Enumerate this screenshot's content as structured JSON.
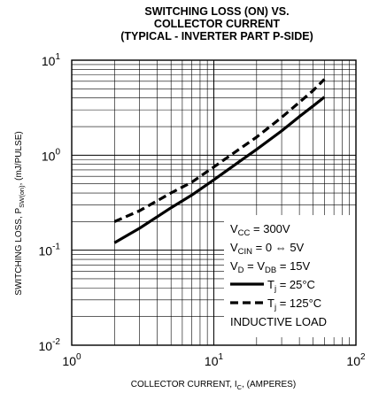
{
  "chart_data": {
    "type": "line",
    "title": [
      "SWITCHING LOSS (ON) VS.",
      "COLLECTOR CURRENT",
      "(TYPICAL - INVERTER PART P-SIDE)"
    ],
    "xlabel": "COLLECTOR CURRENT, I C, (AMPERES)",
    "xlabel_parts": [
      "COLLECTOR CURRENT, I",
      "C",
      ", (AMPERES)"
    ],
    "ylabel_parts": [
      "SWITCHING LOSS, P",
      "SW(on)",
      ",  (mJ/PULSE)"
    ],
    "xscale": "log",
    "yscale": "log",
    "xlim": [
      1,
      100
    ],
    "ylim": [
      0.01,
      10
    ],
    "x_ticks": [
      {
        "base": "10",
        "exp": "0"
      },
      {
        "base": "10",
        "exp": "1"
      },
      {
        "base": "10",
        "exp": "2"
      }
    ],
    "y_ticks": [
      {
        "base": "10",
        "exp": "-2"
      },
      {
        "base": "10",
        "exp": "-1"
      },
      {
        "base": "10",
        "exp": "0"
      },
      {
        "base": "10",
        "exp": "1"
      }
    ],
    "grid": true,
    "legend_placement": "bottom-right",
    "conditions": [
      {
        "main": "V",
        "sub": "CC",
        "rest": " = 300V"
      },
      {
        "main": "V",
        "sub": "CIN",
        "rest": " = 0 ⇔ 5V"
      },
      {
        "main": "V",
        "sub": "D",
        "rest": " = V",
        "sub2": "DB",
        "rest2": " = 15V"
      }
    ],
    "footer_note": "INDUCTIVE LOAD",
    "series": [
      {
        "name": "T j = 25°C",
        "label_main": "T",
        "label_sub": "j",
        "label_rest": " = 25°C",
        "style": "solid",
        "x": [
          2,
          3,
          5,
          7,
          10,
          15,
          20,
          30,
          40,
          50,
          60
        ],
        "y": [
          0.12,
          0.17,
          0.28,
          0.38,
          0.55,
          0.85,
          1.15,
          1.8,
          2.55,
          3.3,
          4.1
        ]
      },
      {
        "name": "T j = 125°C",
        "label_main": "T",
        "label_sub": "j",
        "label_rest": " = 125°C",
        "style": "dashed",
        "x": [
          2,
          3,
          5,
          7,
          10,
          15,
          20,
          30,
          40,
          50,
          60
        ],
        "y": [
          0.2,
          0.26,
          0.4,
          0.52,
          0.75,
          1.15,
          1.55,
          2.5,
          3.6,
          4.8,
          6.3
        ]
      }
    ]
  }
}
